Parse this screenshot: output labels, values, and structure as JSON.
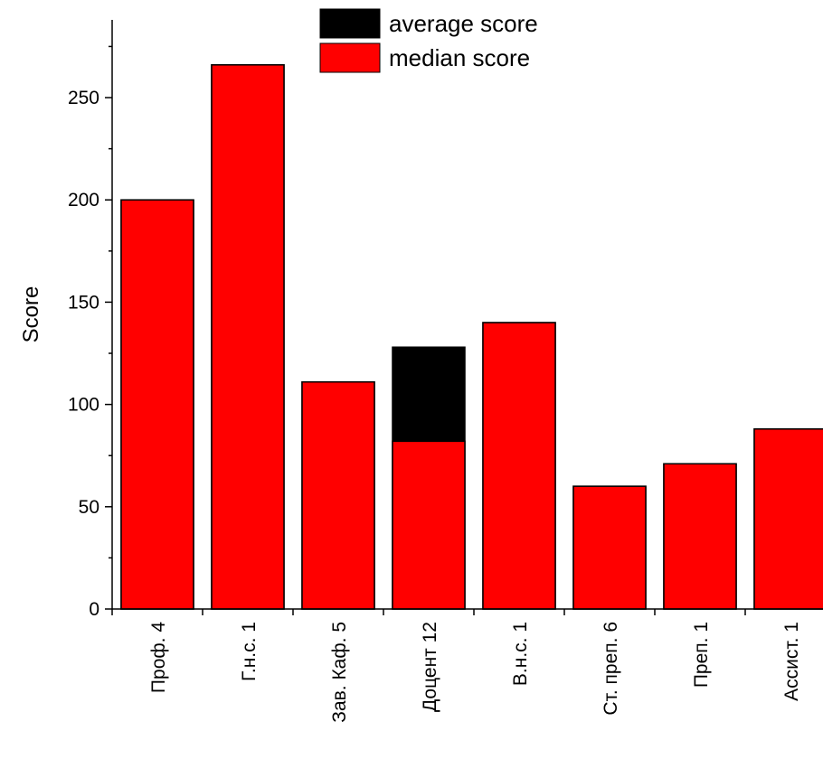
{
  "chart_data": {
    "type": "bar",
    "categories": [
      "Проф. 4",
      "Г.н.с. 1",
      "Зав. Каф. 5",
      "Доцент 12",
      "В.н.с. 1",
      "Ст. преп. 6",
      "Преп. 1",
      "Ассист. 1"
    ],
    "series": [
      {
        "name": "average score",
        "values": [
          200,
          266,
          111,
          128,
          140,
          60,
          71,
          88
        ],
        "color": "#000000"
      },
      {
        "name": "median score",
        "values": [
          200,
          266,
          111,
          82,
          140,
          60,
          71,
          88
        ],
        "color": "#ff0000"
      }
    ],
    "title": "",
    "xlabel": "",
    "ylabel": "Score",
    "ylim": [
      0,
      288
    ],
    "yticks": [
      0,
      50,
      100,
      150,
      200,
      250
    ],
    "grid": false,
    "legend_position": "top-center"
  }
}
